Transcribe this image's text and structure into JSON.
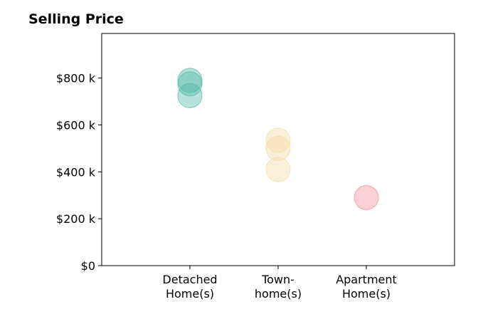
{
  "chart_data": {
    "type": "scatter",
    "title": "Selling Price",
    "xlabel": "",
    "ylabel": "",
    "categories": [
      {
        "line1": "Detached",
        "line2": "Home(s)"
      },
      {
        "line1": "Town-",
        "line2": "home(s)"
      },
      {
        "line1": "Apartment",
        "line2": "Home(s)"
      }
    ],
    "yticks": [
      {
        "value": 0,
        "label": "$0"
      },
      {
        "value": 200,
        "label": "$200 k"
      },
      {
        "value": 400,
        "label": "$400 k"
      },
      {
        "value": 600,
        "label": "$600 k"
      },
      {
        "value": 800,
        "label": "$800 k"
      }
    ],
    "ylim": [
      0,
      990
    ],
    "xlim": [
      0,
      4
    ],
    "grid": false,
    "series": [
      {
        "category_index": 0,
        "color": "#4db6a4",
        "values": [
          790,
          775,
          725
        ]
      },
      {
        "category_index": 1,
        "color": "#f2d9a0",
        "values": [
          535,
          500,
          410
        ]
      },
      {
        "category_index": 2,
        "color": "#f08a94",
        "values": [
          290
        ]
      }
    ]
  }
}
